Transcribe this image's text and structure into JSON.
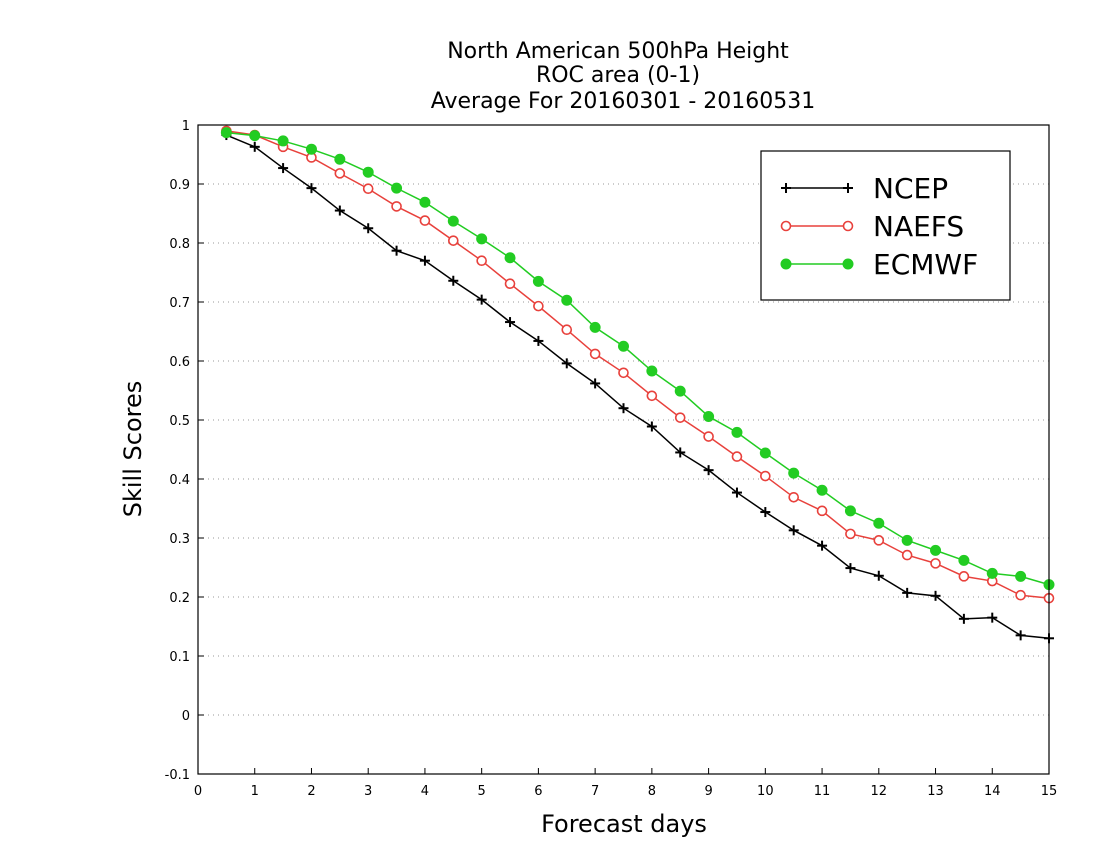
{
  "chart_data": {
    "type": "line",
    "title": [
      "North American 500hPa Height",
      "ROC area (0-1)",
      "Average For 20160301 - 20160531"
    ],
    "xlabel": "Forecast days",
    "ylabel": "Skill Scores",
    "xlim": [
      0,
      15
    ],
    "ylim": [
      -0.1,
      1
    ],
    "xticks": [
      0,
      1,
      2,
      3,
      4,
      5,
      6,
      7,
      8,
      9,
      10,
      11,
      12,
      13,
      14,
      15
    ],
    "yticks": [
      -0.1,
      0,
      0.1,
      0.2,
      0.3,
      0.4,
      0.5,
      0.6,
      0.7,
      0.8,
      0.9,
      1
    ],
    "ytick_labels": [
      "-0.1",
      "0",
      "0.1",
      "0.2",
      "0.3",
      "0.4",
      "0.5",
      "0.6",
      "0.7",
      "0.8",
      "0.9",
      "1"
    ],
    "grid": true,
    "legend_position": "top-right",
    "x": [
      0.5,
      1,
      1.5,
      2,
      2.5,
      3,
      3.5,
      4,
      4.5,
      5,
      5.5,
      6,
      6.5,
      7,
      7.5,
      8,
      8.5,
      9,
      9.5,
      10,
      10.5,
      11,
      11.5,
      12,
      12.5,
      13,
      13.5,
      14,
      14.5,
      15
    ],
    "series": [
      {
        "name": "NCEP",
        "color": "#000000",
        "marker": "plus",
        "values": [
          0.983,
          0.963,
          0.927,
          0.893,
          0.855,
          0.825,
          0.787,
          0.77,
          0.736,
          0.704,
          0.666,
          0.634,
          0.596,
          0.562,
          0.52,
          0.489,
          0.445,
          0.415,
          0.377,
          0.344,
          0.313,
          0.287,
          0.249,
          0.236,
          0.207,
          0.202,
          0.163,
          0.165,
          0.135,
          0.13
        ]
      },
      {
        "name": "NAEFS",
        "color": "#e8413c",
        "marker": "open-circle",
        "values": [
          0.99,
          0.983,
          0.963,
          0.945,
          0.918,
          0.892,
          0.862,
          0.838,
          0.804,
          0.77,
          0.731,
          0.693,
          0.653,
          0.612,
          0.58,
          0.541,
          0.504,
          0.472,
          0.438,
          0.405,
          0.369,
          0.346,
          0.307,
          0.296,
          0.271,
          0.257,
          0.235,
          0.227,
          0.203,
          0.198
        ]
      },
      {
        "name": "ECMWF",
        "color": "#22cc22",
        "marker": "filled-circle",
        "values": [
          0.987,
          0.982,
          0.973,
          0.959,
          0.942,
          0.92,
          0.893,
          0.869,
          0.837,
          0.807,
          0.775,
          0.735,
          0.703,
          0.657,
          0.625,
          0.583,
          0.549,
          0.506,
          0.479,
          0.444,
          0.41,
          0.381,
          0.346,
          0.325,
          0.296,
          0.279,
          0.262,
          0.24,
          0.235,
          0.221
        ]
      }
    ]
  }
}
